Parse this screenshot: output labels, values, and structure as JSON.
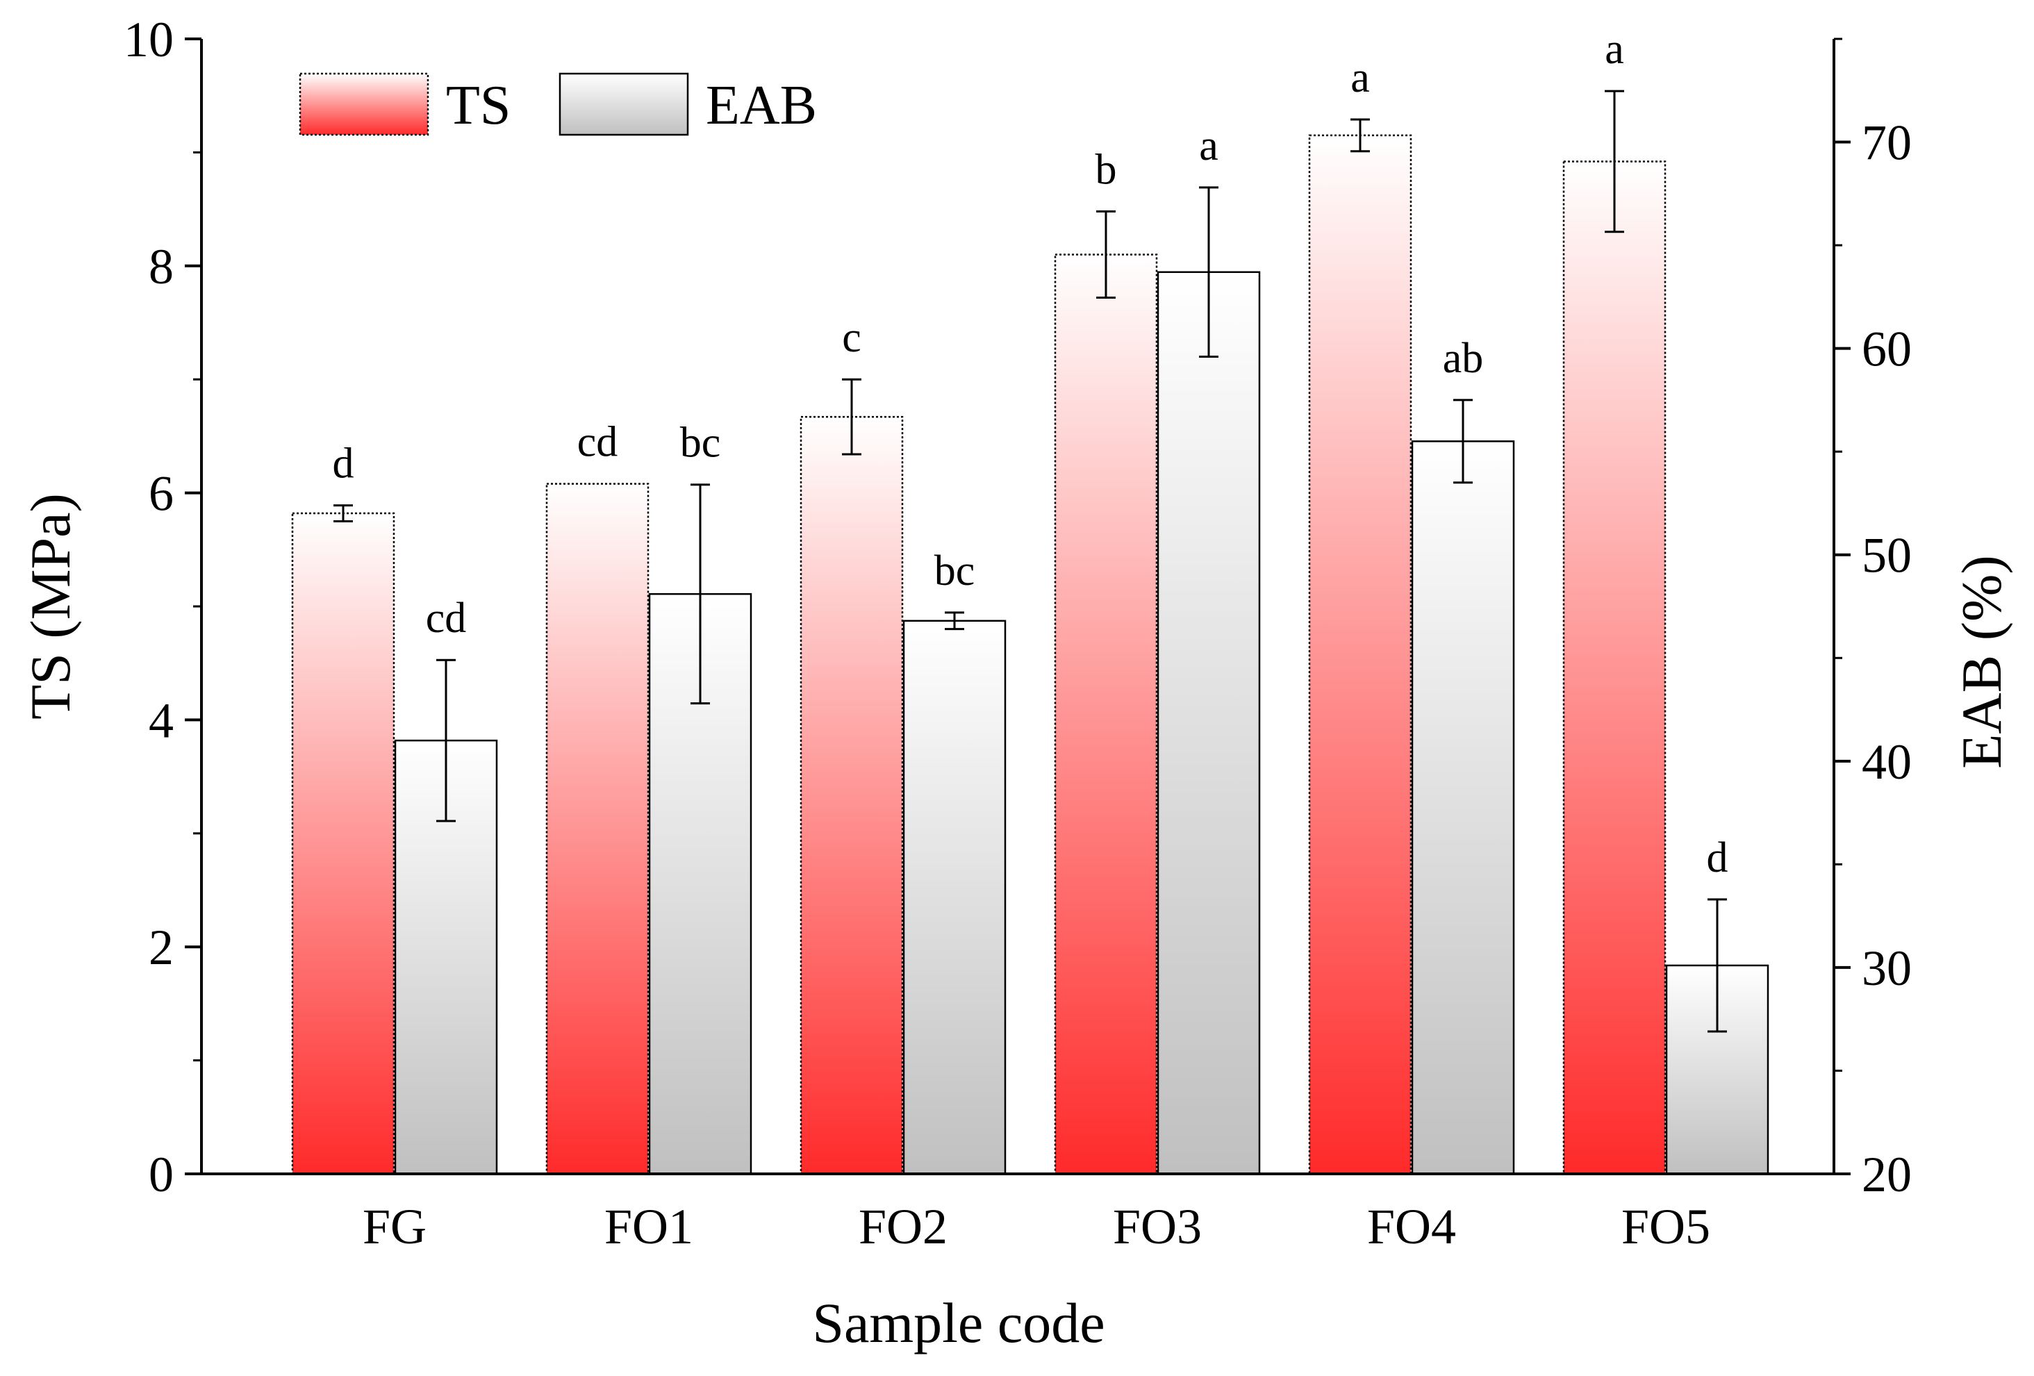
{
  "chart_data": {
    "type": "bar",
    "categories": [
      "FG",
      "FO1",
      "FO2",
      "FO3",
      "FO4",
      "FO5"
    ],
    "xlabel": "Sample code",
    "series": [
      {
        "name": "TS",
        "axis": "left",
        "values": [
          5.82,
          6.08,
          6.67,
          8.1,
          9.15,
          8.92
        ],
        "errors": [
          0.07,
          0.0,
          0.33,
          0.38,
          0.14,
          0.62
        ],
        "significance": [
          "d",
          "cd",
          "c",
          "b",
          "a",
          "a"
        ],
        "color_top": "#ffffff",
        "color_bottom": "#ff2a2a"
      },
      {
        "name": "EAB",
        "axis": "right",
        "values": [
          41,
          48.1,
          46.8,
          63.7,
          55.5,
          30.1
        ],
        "errors": [
          3.9,
          5.3,
          0.4,
          4.1,
          2.0,
          3.2
        ],
        "significance": [
          "cd",
          "bc",
          "bc",
          "a",
          "ab",
          "d"
        ],
        "color_top": "#ffffff",
        "color_bottom": "#c0c0c0"
      }
    ],
    "y_left": {
      "label": "TS (MPa)",
      "lim": [
        0,
        10
      ],
      "ticks": [
        0,
        2,
        4,
        6,
        8,
        10
      ],
      "tick_labels": [
        "0",
        "2",
        "4",
        "6",
        "8",
        "10"
      ]
    },
    "y_right": {
      "label": "EAB (%)",
      "lim": [
        20,
        75
      ],
      "ticks": [
        20,
        30,
        40,
        50,
        60,
        70
      ],
      "tick_labels": [
        "20",
        "30",
        "40",
        "50",
        "60",
        "70"
      ]
    },
    "legend": {
      "position": "top-left",
      "entries": [
        "TS",
        "EAB"
      ]
    },
    "grid": false
  }
}
